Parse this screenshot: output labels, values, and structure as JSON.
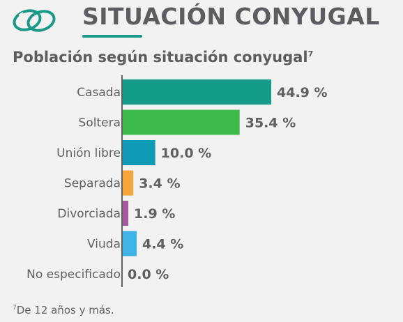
{
  "header": {
    "icon": "wedding-rings-icon",
    "title": "SITUACIÓN CONYUGAL",
    "accent_color": "#1a9a86"
  },
  "chart_title": {
    "text": "Población según situación conyugal",
    "footnote_ref": "7"
  },
  "footnote": {
    "ref": "7",
    "text": "De 12 años y más."
  },
  "chart_data": {
    "type": "bar",
    "orientation": "horizontal",
    "title": "Población según situación conyugal",
    "categories": [
      "Casada",
      "Soltera",
      "Unión libre",
      "Separada",
      "Divorciada",
      "Viuda",
      "No especificado"
    ],
    "values": [
      44.9,
      35.4,
      10.0,
      3.4,
      1.9,
      4.4,
      0.0
    ],
    "value_labels": [
      "44.9 %",
      "35.4 %",
      "10.0 %",
      "3.4 %",
      "1.9 %",
      "4.4 %",
      "0.0 %"
    ],
    "colors": [
      "#139c88",
      "#3cbb4a",
      "#0f9bb5",
      "#f6a73c",
      "#a35aa0",
      "#3db3e6",
      "#9e9e9e"
    ],
    "unit": "%",
    "xlim": [
      0,
      50
    ],
    "grid": false,
    "legend": "none"
  }
}
